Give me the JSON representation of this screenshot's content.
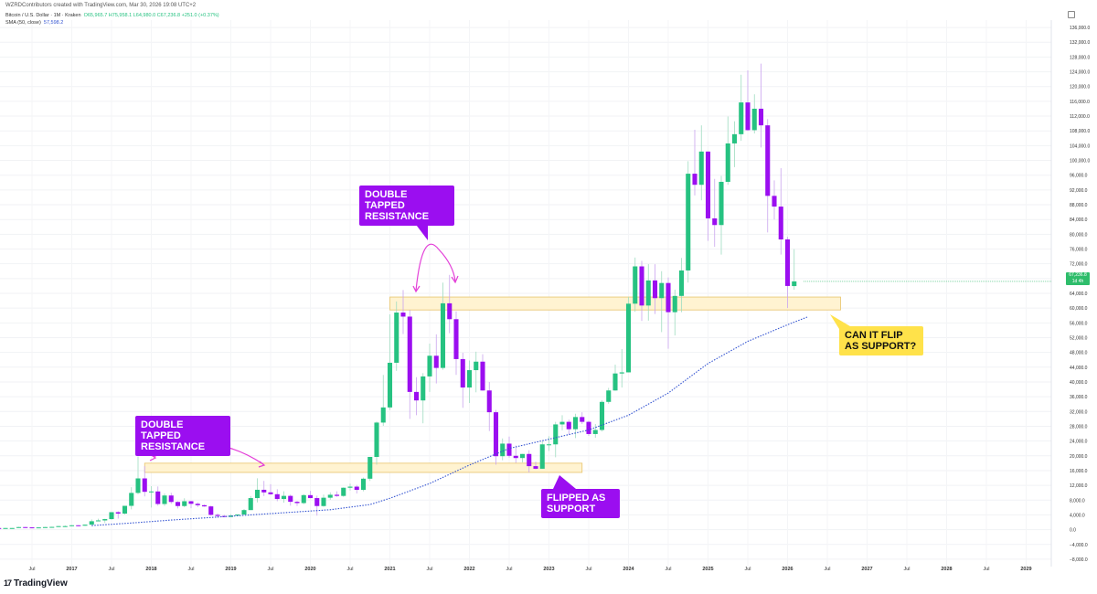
{
  "header": {
    "credit": "WZRDContributors created with TradingView.com, Mar 30, 2026 19:08 UTC+2",
    "symbol_line": "Bitcoin / U.S. Dollar · 1M · Kraken",
    "ohlc": "O65,965.7 H75,958.1 L64,980.0 C67,236.8 +251.0 (+0.37%)",
    "sma_label": "SMA (50, close)",
    "sma_value": "57,598.2"
  },
  "colors": {
    "up": "#26c281",
    "down": "#9b0ef0",
    "zone_fill": "#fff3d1",
    "zone_border": "#e8c46a",
    "sma": "#3454d1"
  },
  "price_tag": {
    "value": "67,236.8",
    "sub": "1d 4h"
  },
  "annotations": {
    "double_tap_1": "DOUBLE TAPPED RESISTANCE",
    "double_tap_2": "DOUBLE TAPPED RESISTANCE",
    "flipped": "FLIPPED AS SUPPORT",
    "question": "CAN IT FLIP AS SUPPORT?"
  },
  "footer": {
    "brand": "TradingView"
  },
  "chart_data": {
    "type": "candlestick",
    "interval": "1M",
    "y_axis_side": "right",
    "ylim": [
      -10000,
      138000
    ],
    "y_ticks": [
      -8000,
      -4000,
      0,
      4000,
      8000,
      12000,
      16000,
      20000,
      24000,
      28000,
      32000,
      36000,
      40000,
      44000,
      48000,
      52000,
      56000,
      60000,
      64000,
      68000,
      72000,
      76000,
      80000,
      84000,
      88000,
      92000,
      96000,
      100000,
      104000,
      108000,
      112000,
      116000,
      120000,
      124000,
      128000,
      132000,
      136000
    ],
    "y_tick_labels": [
      "−8,000.0",
      "−4,000.0",
      "0.0",
      "4,000.0",
      "8,000.0",
      "12,000.0",
      "16,000.0",
      "20,000.0",
      "24,000.0",
      "28,000.0",
      "32,000.0",
      "36,000.0",
      "40,000.0",
      "44,000.0",
      "48,000.0",
      "52,000.0",
      "56,000.0",
      "60,000.0",
      "64,000.0",
      "68,000.0",
      "72,000.0",
      "76,000.0",
      "80,000.0",
      "84,000.0",
      "88,000.0",
      "92,000.0",
      "96,000.0",
      "100,000.0",
      "104,000.0",
      "108,000.0",
      "112,000.0",
      "116,000.0",
      "120,000.0",
      "124,000.0",
      "128,000.0",
      "132,000.0",
      "136,000.0"
    ],
    "x_tick_labels": [
      "Jul",
      "2017",
      "Jul",
      "2018",
      "Jul",
      "2019",
      "Jul",
      "2020",
      "Jul",
      "2021",
      "Jul",
      "2022",
      "Jul",
      "2023",
      "Jul",
      "2024",
      "Jul",
      "2025",
      "Jul",
      "2026",
      "Jul",
      "2027",
      "Jul",
      "2028",
      "Jul",
      "2029"
    ],
    "x_tick_dates": [
      "2016-07",
      "2017-01",
      "2017-07",
      "2018-01",
      "2018-07",
      "2019-01",
      "2019-07",
      "2020-01",
      "2020-07",
      "2021-01",
      "2021-07",
      "2022-01",
      "2022-07",
      "2023-01",
      "2023-07",
      "2024-01",
      "2024-07",
      "2025-01",
      "2025-07",
      "2026-01",
      "2026-07",
      "2027-01",
      "2027-07",
      "2028-01",
      "2028-07",
      "2029-01"
    ],
    "first_month": "2014-04",
    "candles": [
      [
        470,
        500,
        400,
        450
      ],
      [
        450,
        460,
        400,
        430
      ],
      [
        430,
        440,
        390,
        400
      ],
      [
        400,
        420,
        360,
        390
      ],
      [
        390,
        410,
        380,
        395
      ],
      [
        395,
        400,
        340,
        350
      ],
      [
        350,
        370,
        300,
        320
      ],
      [
        320,
        330,
        300,
        310
      ],
      [
        310,
        330,
        200,
        220
      ],
      [
        220,
        270,
        170,
        250
      ],
      [
        250,
        270,
        220,
        245
      ],
      [
        245,
        300,
        230,
        290
      ],
      [
        290,
        310,
        220,
        240
      ],
      [
        240,
        260,
        220,
        230
      ],
      [
        230,
        320,
        215,
        285
      ],
      [
        285,
        290,
        250,
        280
      ],
      [
        280,
        300,
        210,
        230
      ],
      [
        230,
        250,
        190,
        230
      ],
      [
        230,
        330,
        225,
        320
      ],
      [
        320,
        420,
        310,
        410
      ],
      [
        410,
        450,
        400,
        430
      ],
      [
        430,
        480,
        370,
        440
      ],
      [
        440,
        470,
        400,
        420
      ],
      [
        420,
        470,
        410,
        450
      ],
      [
        450,
        470,
        430,
        450
      ],
      [
        450,
        770,
        450,
        700
      ],
      [
        700,
        720,
        610,
        620
      ],
      [
        620,
        630,
        560,
        580
      ],
      [
        580,
        620,
        570,
        610
      ],
      [
        610,
        740,
        600,
        700
      ],
      [
        700,
        780,
        700,
        750
      ],
      [
        750,
        970,
        740,
        960
      ],
      [
        960,
        1150,
        750,
        960
      ],
      [
        960,
        1200,
        920,
        1190
      ],
      [
        1190,
        1200,
        920,
        1070
      ],
      [
        1070,
        1350,
        1050,
        1350
      ],
      [
        1350,
        2760,
        1340,
        2280
      ],
      [
        2280,
        2970,
        2280,
        2500
      ],
      [
        2500,
        2950,
        1800,
        2860
      ],
      [
        2860,
        4750,
        2710,
        4730
      ],
      [
        4730,
        4980,
        3000,
        4350
      ],
      [
        4350,
        6450,
        4110,
        6450
      ],
      [
        6450,
        11500,
        5500,
        9950
      ],
      [
        9950,
        19800,
        9600,
        13880
      ],
      [
        13880,
        17200,
        9000,
        10250
      ],
      [
        10250,
        11780,
        6000,
        10350
      ],
      [
        10350,
        11700,
        6500,
        6950
      ],
      [
        6950,
        9800,
        6430,
        9250
      ],
      [
        9250,
        9990,
        7000,
        7500
      ],
      [
        7500,
        7700,
        5750,
        6400
      ],
      [
        6400,
        8500,
        6070,
        7700
      ],
      [
        7700,
        7800,
        5800,
        7000
      ],
      [
        7000,
        7400,
        6100,
        6620
      ],
      [
        6620,
        6800,
        6200,
        6300
      ],
      [
        6300,
        6500,
        3800,
        4000
      ],
      [
        4000,
        4400,
        3200,
        3700
      ],
      [
        3700,
        4000,
        3350,
        3440
      ],
      [
        3440,
        4200,
        3400,
        3820
      ],
      [
        3820,
        4100,
        3680,
        4100
      ],
      [
        4100,
        5600,
        4050,
        5300
      ],
      [
        5300,
        9100,
        5300,
        8550
      ],
      [
        8550,
        13900,
        7400,
        10800
      ],
      [
        10800,
        13200,
        9100,
        10100
      ],
      [
        10100,
        12300,
        9400,
        9600
      ],
      [
        9600,
        10950,
        7700,
        8300
      ],
      [
        8300,
        10400,
        7300,
        9150
      ],
      [
        9150,
        9500,
        6500,
        7550
      ],
      [
        7550,
        7800,
        6430,
        7200
      ],
      [
        7200,
        9600,
        6900,
        9350
      ],
      [
        9350,
        10500,
        8500,
        8550
      ],
      [
        8550,
        9200,
        3800,
        6400
      ],
      [
        6400,
        9500,
        6200,
        8650
      ],
      [
        8650,
        10100,
        8100,
        9450
      ],
      [
        9450,
        10400,
        8900,
        9140
      ],
      [
        9140,
        11450,
        8900,
        11350
      ],
      [
        11350,
        12470,
        10600,
        11650
      ],
      [
        11650,
        12100,
        9800,
        10780
      ],
      [
        10780,
        14100,
        10400,
        13800
      ],
      [
        13800,
        19000,
        13200,
        19700
      ],
      [
        19700,
        29300,
        17600,
        29000
      ],
      [
        29000,
        41900,
        28100,
        33100
      ],
      [
        33100,
        58300,
        32400,
        45200
      ],
      [
        45200,
        61800,
        43000,
        58800
      ],
      [
        58800,
        64900,
        53000,
        57700
      ],
      [
        57700,
        59500,
        30000,
        37300
      ],
      [
        37300,
        41300,
        31000,
        35000
      ],
      [
        35000,
        42400,
        28800,
        41500
      ],
      [
        41500,
        50400,
        37300,
        47100
      ],
      [
        47100,
        52900,
        39600,
        43800
      ],
      [
        43800,
        66900,
        43300,
        61300
      ],
      [
        61300,
        69000,
        53200,
        57000
      ],
      [
        57000,
        59100,
        41900,
        46200
      ],
      [
        46200,
        47900,
        33000,
        38500
      ],
      [
        38500,
        45800,
        34300,
        43200
      ],
      [
        43200,
        48200,
        37200,
        45500
      ],
      [
        45500,
        47500,
        37600,
        37700
      ],
      [
        37700,
        40000,
        26700,
        31800
      ],
      [
        31800,
        32400,
        17600,
        19900
      ],
      [
        19900,
        24700,
        18800,
        23300
      ],
      [
        23300,
        25200,
        19500,
        20000
      ],
      [
        20000,
        22800,
        18100,
        19400
      ],
      [
        19400,
        20500,
        18200,
        20500
      ],
      [
        20500,
        21500,
        15500,
        17200
      ],
      [
        17200,
        18400,
        16300,
        16500
      ],
      [
        16500,
        23900,
        16500,
        23100
      ],
      [
        23100,
        25300,
        21300,
        23100
      ],
      [
        23100,
        29200,
        19600,
        28500
      ],
      [
        28500,
        31000,
        26900,
        29200
      ],
      [
        29200,
        29800,
        25800,
        27200
      ],
      [
        27200,
        31400,
        24800,
        30500
      ],
      [
        30500,
        31800,
        28600,
        29200
      ],
      [
        29200,
        29500,
        25400,
        25900
      ],
      [
        25900,
        28600,
        24900,
        27000
      ],
      [
        27000,
        35000,
        26600,
        34600
      ],
      [
        34600,
        38400,
        34100,
        37700
      ],
      [
        37700,
        44700,
        37600,
        42300
      ],
      [
        42300,
        48900,
        38500,
        42600
      ],
      [
        42600,
        63000,
        42600,
        61200
      ],
      [
        61200,
        73700,
        59000,
        71300
      ],
      [
        71300,
        72800,
        56500,
        60700
      ],
      [
        60700,
        71900,
        56600,
        67500
      ],
      [
        67500,
        71900,
        58400,
        62700
      ],
      [
        62700,
        70000,
        53500,
        66800
      ],
      [
        66800,
        68300,
        49000,
        58900
      ],
      [
        58900,
        65000,
        52600,
        63300
      ],
      [
        63300,
        73600,
        58900,
        70200
      ],
      [
        70200,
        99800,
        66900,
        96400
      ],
      [
        96400,
        108300,
        90500,
        93400
      ],
      [
        93400,
        109500,
        89200,
        102400
      ],
      [
        102400,
        102500,
        78200,
        84300
      ],
      [
        84300,
        95000,
        76600,
        82500
      ],
      [
        82500,
        95800,
        74500,
        94200
      ],
      [
        94200,
        111900,
        93400,
        104600
      ],
      [
        104600,
        110600,
        98200,
        107100
      ],
      [
        107100,
        123200,
        105300,
        115700
      ],
      [
        115700,
        124400,
        108000,
        108200
      ],
      [
        108200,
        117900,
        107300,
        114000
      ],
      [
        114000,
        126200,
        103500,
        109500
      ],
      [
        109500,
        111200,
        80500,
        90400
      ],
      [
        90400,
        94600,
        84000,
        87500
      ],
      [
        87500,
        97900,
        74500,
        78600
      ],
      [
        78600,
        79300,
        60000,
        66000
      ],
      [
        65965.7,
        75958.1,
        64980,
        67236.8
      ]
    ],
    "series": [
      {
        "name": "SMA (50, close)",
        "type": "line",
        "style": "dotted",
        "start_month": "2017-04",
        "points": [
          [
            2017.25,
            1100
          ],
          [
            2017.75,
            1800
          ],
          [
            2018.25,
            2600
          ],
          [
            2018.75,
            3300
          ],
          [
            2019.25,
            4000
          ],
          [
            2019.75,
            4700
          ],
          [
            2020.25,
            5400
          ],
          [
            2020.75,
            6800
          ],
          [
            2021.0,
            8500
          ],
          [
            2021.5,
            12500
          ],
          [
            2022.0,
            17500
          ],
          [
            2022.5,
            22000
          ],
          [
            2023.0,
            24500
          ],
          [
            2023.5,
            27000
          ],
          [
            2024.0,
            31000
          ],
          [
            2024.5,
            37000
          ],
          [
            2025.0,
            45000
          ],
          [
            2025.5,
            51000
          ],
          [
            2026.0,
            55500
          ],
          [
            2026.25,
            57598.2
          ]
        ]
      }
    ],
    "zones": [
      {
        "label": "resistance-zone-2017",
        "from": "2017-12",
        "to": "2023-06",
        "y_low": 15500,
        "y_high": 18000
      },
      {
        "label": "resistance-zone-2021",
        "from": "2021-01",
        "to": "2026-09",
        "y_low": 59500,
        "y_high": 63000
      }
    ],
    "grid": true,
    "legend": "top-left"
  }
}
